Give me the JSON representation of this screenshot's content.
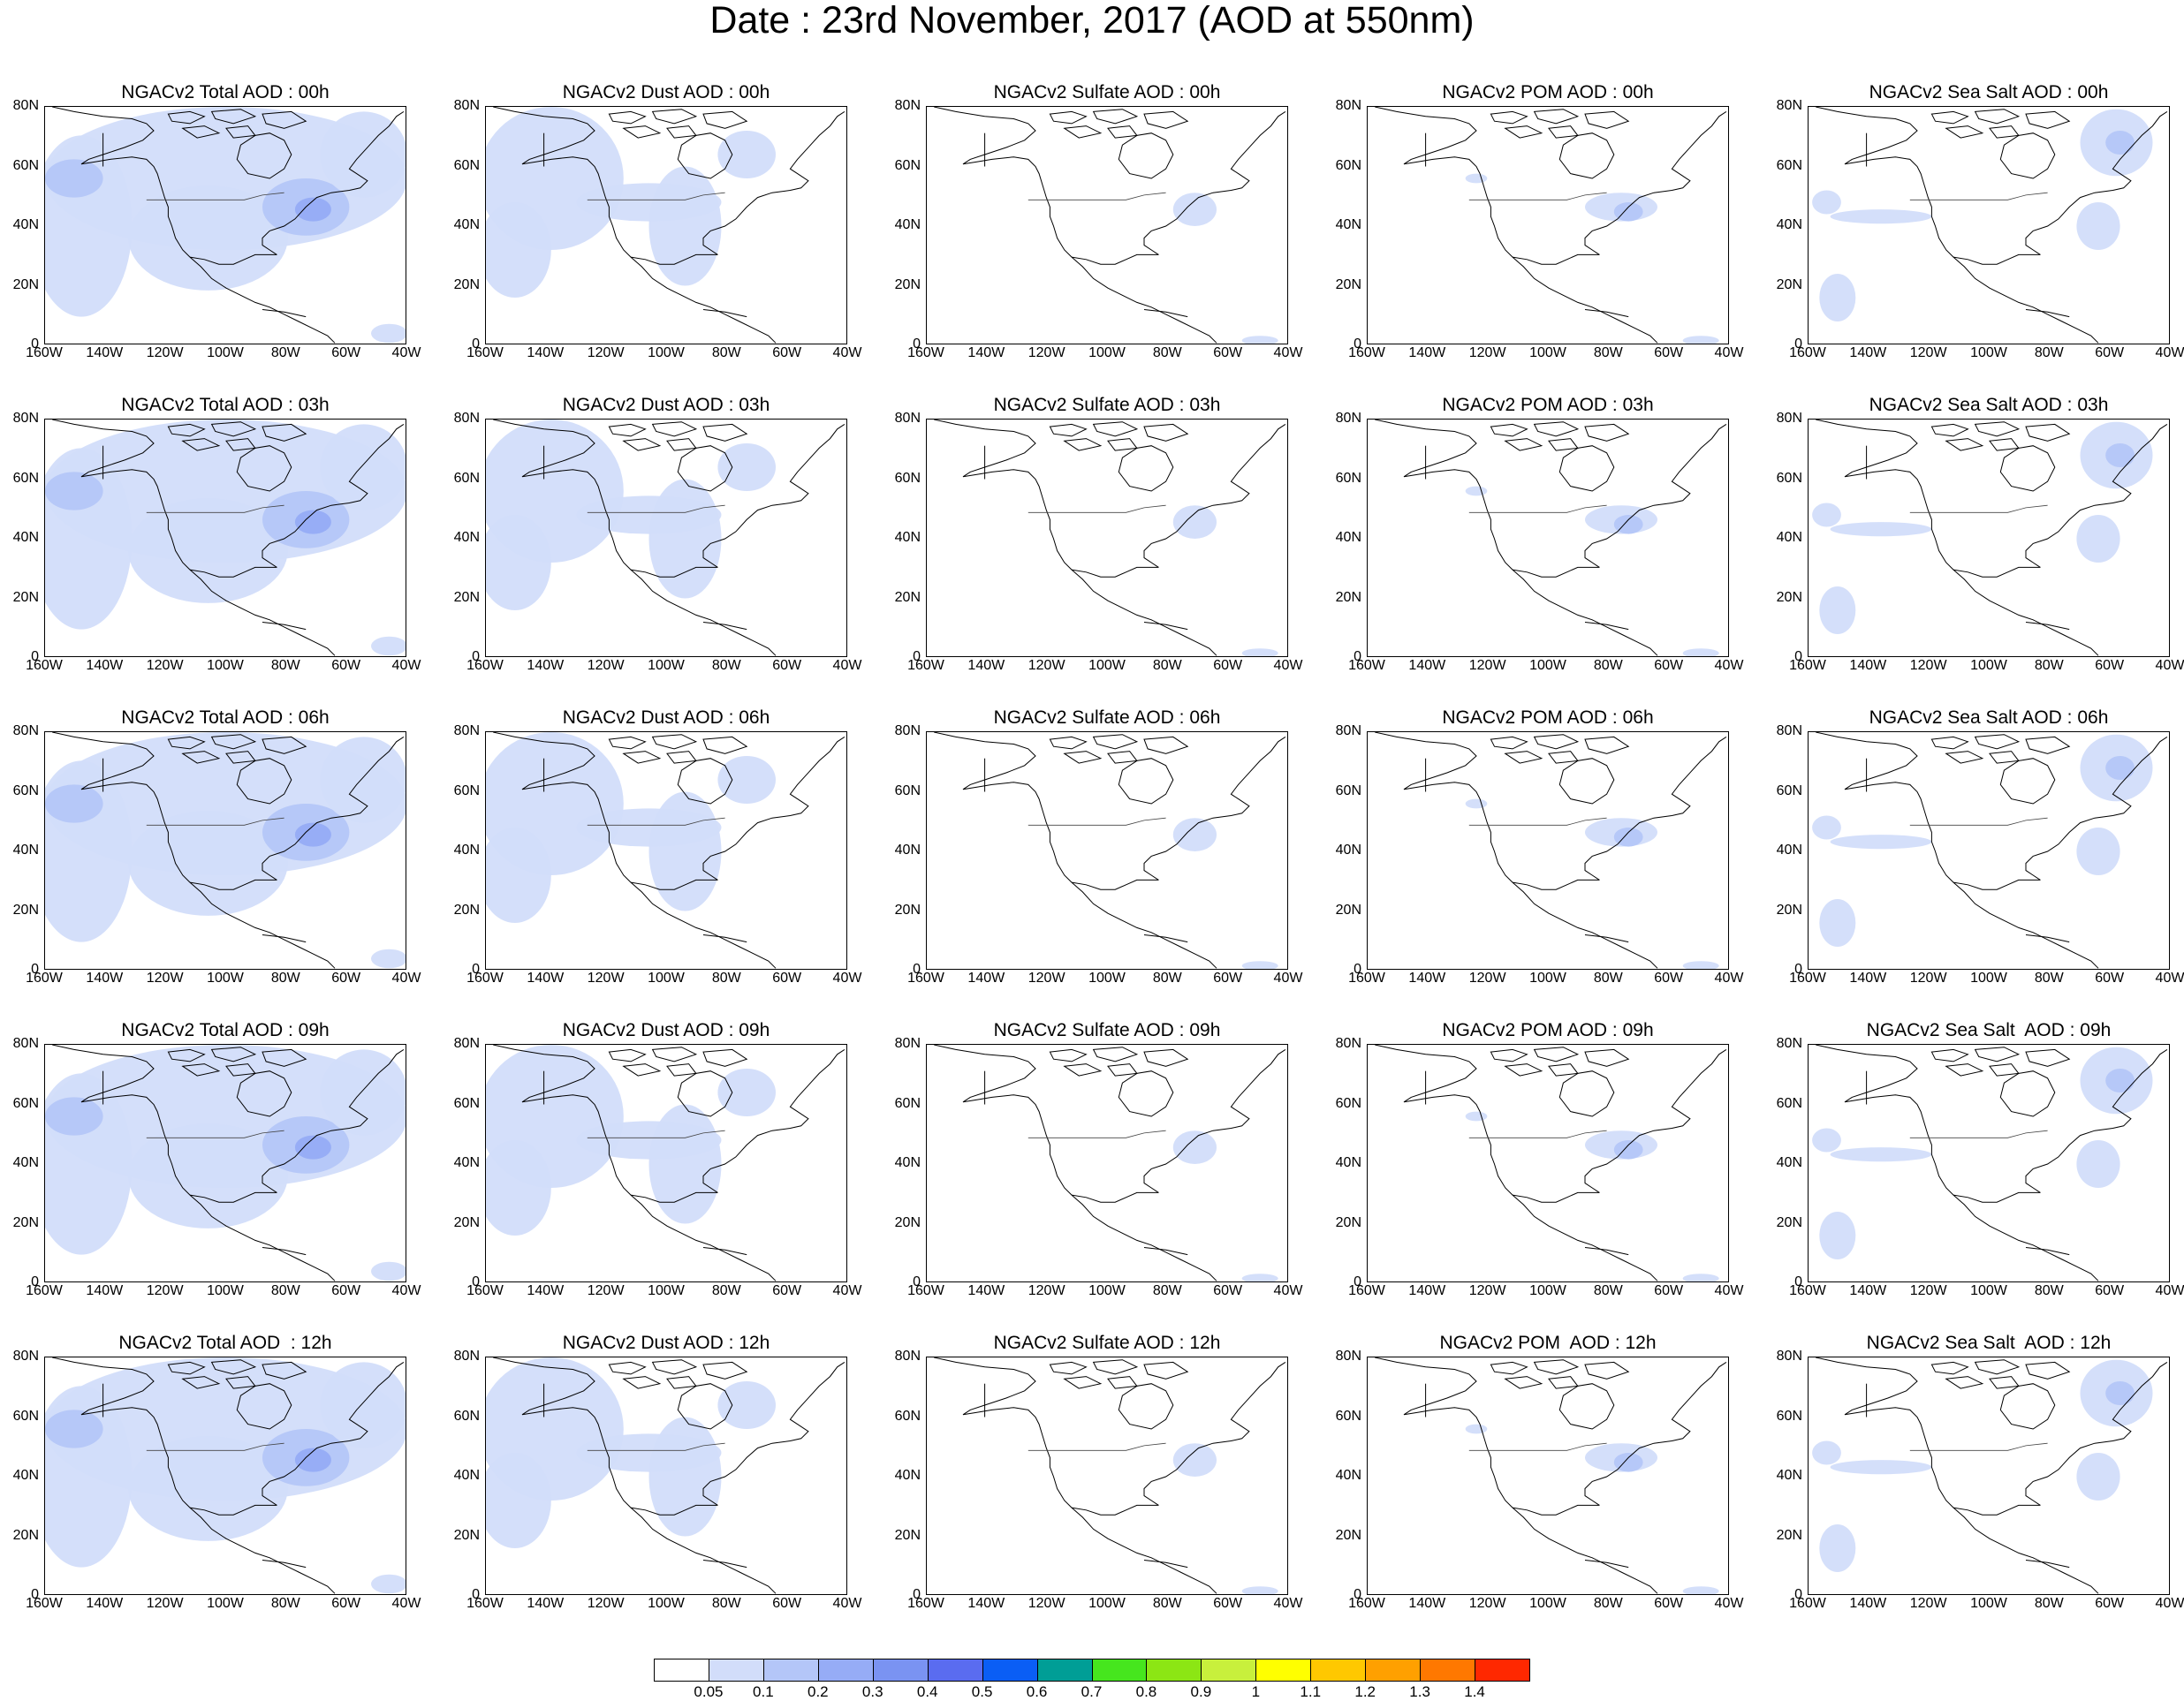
{
  "main_title": "Date : 23rd November, 2017 (AOD at 550nm)",
  "lat_ticks": [
    "80N",
    "60N",
    "40N",
    "20N",
    "0"
  ],
  "lon_ticks": [
    "160W",
    "140W",
    "120W",
    "100W",
    "80W",
    "60W",
    "40W"
  ],
  "panels": [
    {
      "title": "NGACv2 Total AOD : 00h",
      "field": "total"
    },
    {
      "title": "NGACv2 Dust AOD : 00h",
      "field": "dust"
    },
    {
      "title": "NGACv2 Sulfate AOD : 00h",
      "field": "sulfate"
    },
    {
      "title": "NGACv2 POM AOD : 00h",
      "field": "pom"
    },
    {
      "title": "NGACv2 Sea Salt AOD : 00h",
      "field": "seasalt"
    },
    {
      "title": "NGACv2 Total AOD : 03h",
      "field": "total"
    },
    {
      "title": "NGACv2 Dust AOD : 03h",
      "field": "dust"
    },
    {
      "title": "NGACv2 Sulfate AOD : 03h",
      "field": "sulfate"
    },
    {
      "title": "NGACv2 POM AOD : 03h",
      "field": "pom"
    },
    {
      "title": "NGACv2 Sea Salt AOD : 03h",
      "field": "seasalt"
    },
    {
      "title": "NGACv2 Total AOD : 06h",
      "field": "total"
    },
    {
      "title": "NGACv2 Dust AOD : 06h",
      "field": "dust"
    },
    {
      "title": "NGACv2 Sulfate AOD : 06h",
      "field": "sulfate"
    },
    {
      "title": "NGACv2 POM AOD : 06h",
      "field": "pom"
    },
    {
      "title": "NGACv2 Sea Salt AOD : 06h",
      "field": "seasalt"
    },
    {
      "title": "NGACv2 Total AOD : 09h",
      "field": "total"
    },
    {
      "title": "NGACv2 Dust AOD : 09h",
      "field": "dust"
    },
    {
      "title": "NGACv2 Sulfate AOD : 09h",
      "field": "sulfate"
    },
    {
      "title": "NGACv2 POM AOD : 09h",
      "field": "pom"
    },
    {
      "title": "NGACv2 Sea Salt  AOD : 09h",
      "field": "seasalt"
    },
    {
      "title": "NGACv2 Total AOD  : 12h",
      "field": "total"
    },
    {
      "title": "NGACv2 Dust AOD : 12h",
      "field": "dust"
    },
    {
      "title": "NGACv2 Sulfate AOD : 12h",
      "field": "sulfate"
    },
    {
      "title": "NGACv2 POM  AOD : 12h",
      "field": "pom"
    },
    {
      "title": "NGACv2 Sea Salt  AOD : 12h",
      "field": "seasalt"
    }
  ],
  "colorbar": {
    "labels": [
      "0.05",
      "0.1",
      "0.2",
      "0.3",
      "0.4",
      "0.5",
      "0.6",
      "0.7",
      "0.8",
      "0.9",
      "1",
      "1.1",
      "1.2",
      "1.3",
      "1.4"
    ],
    "colors": [
      "#ffffff",
      "#d2ddfa",
      "#b4c6f8",
      "#96acf6",
      "#7a93f2",
      "#5a6cf0",
      "#0a5ef5",
      "#009e96",
      "#46e61e",
      "#8ce614",
      "#c8f03c",
      "#ffff00",
      "#ffc800",
      "#ffa000",
      "#ff7800",
      "#ff2800"
    ]
  }
}
